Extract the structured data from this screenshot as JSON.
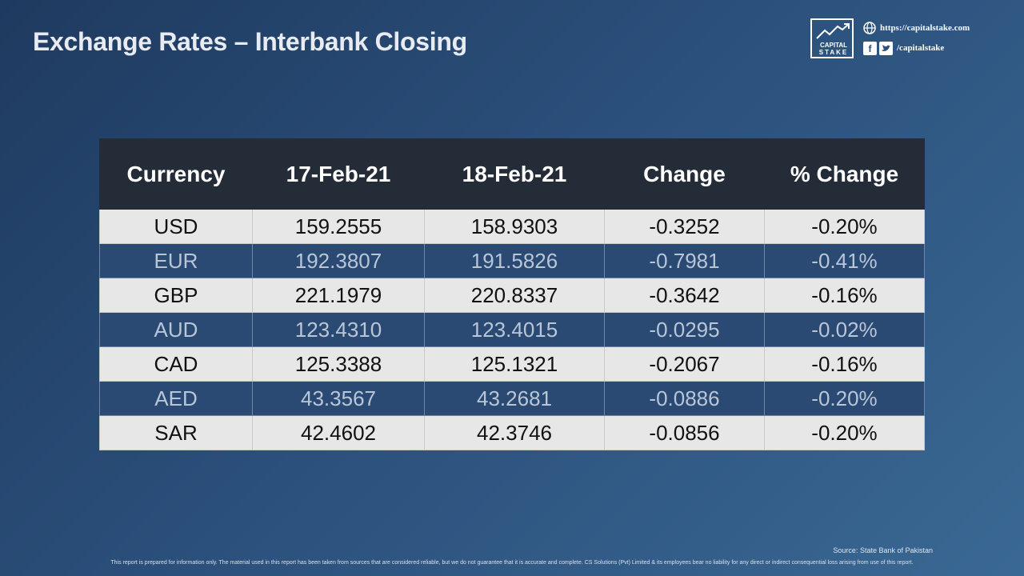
{
  "header": {
    "title": "Exchange Rates – Interbank Closing"
  },
  "brand": {
    "logo_line1": "CAPITAL",
    "logo_line2": "STAKE",
    "website": "https://capitalstake.com",
    "social_handle": "/capitalstake",
    "globe_icon": "globe-icon",
    "facebook_icon": "facebook-icon",
    "twitter_icon": "twitter-icon"
  },
  "table": {
    "headers": [
      "Currency",
      "17-Feb-21",
      "18-Feb-21",
      "Change",
      "% Change"
    ],
    "rows": [
      [
        "USD",
        "159.2555",
        "158.9303",
        "-0.3252",
        "-0.20%"
      ],
      [
        "EUR",
        "192.3807",
        "191.5826",
        "-0.7981",
        "-0.41%"
      ],
      [
        "GBP",
        "221.1979",
        "220.8337",
        "-0.3642",
        "-0.16%"
      ],
      [
        "AUD",
        "123.4310",
        "123.4015",
        "-0.0295",
        "-0.02%"
      ],
      [
        "CAD",
        "125.3388",
        "125.1321",
        "-0.2067",
        "-0.16%"
      ],
      [
        "AED",
        "43.3567",
        "43.2681",
        "-0.0886",
        "-0.20%"
      ],
      [
        "SAR",
        "42.4602",
        "42.3746",
        "-0.0856",
        "-0.20%"
      ]
    ]
  },
  "footer": {
    "source": "Source: State Bank of Pakistan",
    "disclaimer": "This report is prepared for information only. The material used in this report has been taken from sources that are considered reliable, but we do not guarantee that it is accurate and complete. CS Solutions (Pvt) Limited & its employees bear no liability for any direct or indirect consequential loss arising from use of this report."
  },
  "colors": {
    "header_bg": "#242c38",
    "row_light": "#e7e7e7",
    "row_dark": "#2a4a74",
    "background": "#2a4f7a"
  }
}
